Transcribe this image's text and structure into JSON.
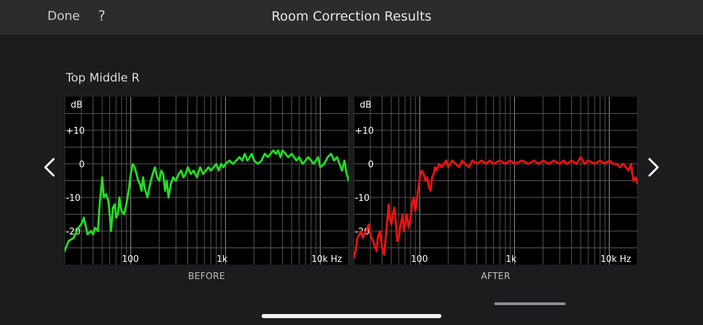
{
  "header": {
    "done_label": "Done",
    "help_label": "?",
    "title": "Room Correction Results"
  },
  "section": {
    "title": "Top Middle R"
  },
  "navigation": {
    "prev_icon": "chevron-left-icon",
    "next_icon": "chevron-right-icon"
  },
  "colors": {
    "before": "#22dd22",
    "after": "#ee1111",
    "background": "#1c1c1e",
    "chart_background": "#000000"
  },
  "chart_data": [
    {
      "type": "line",
      "caption": "BEFORE",
      "ylabel": "dB",
      "xscale": "log",
      "xlim": [
        20,
        20000
      ],
      "ylim": [
        -30,
        20
      ],
      "y_ticks": [
        {
          "value": 10,
          "label": "+10"
        },
        {
          "value": 0,
          "label": "0"
        },
        {
          "value": -10,
          "label": "-10"
        },
        {
          "value": -20,
          "label": "-20"
        }
      ],
      "x_ticks": [
        {
          "value": 100,
          "label": "100"
        },
        {
          "value": 1000,
          "label": "1k"
        },
        {
          "value": 10000,
          "label": "10k Hz"
        }
      ],
      "grid": true,
      "series": [
        {
          "color": "#22dd22",
          "x": [
            20,
            22,
            25,
            28,
            30,
            32,
            35,
            38,
            40,
            42,
            45,
            47,
            50,
            52,
            55,
            58,
            60,
            62,
            65,
            68,
            70,
            73,
            76,
            78,
            80,
            85,
            90,
            95,
            100,
            105,
            110,
            115,
            120,
            125,
            130,
            135,
            140,
            150,
            160,
            170,
            180,
            190,
            200,
            210,
            220,
            230,
            240,
            250,
            265,
            280,
            300,
            320,
            340,
            360,
            380,
            400,
            430,
            460,
            500,
            540,
            580,
            620,
            660,
            700,
            750,
            800,
            850,
            900,
            950,
            1000,
            1100,
            1200,
            1300,
            1400,
            1500,
            1600,
            1700,
            1800,
            1900,
            2000,
            2200,
            2400,
            2600,
            2800,
            3000,
            3200,
            3400,
            3600,
            3800,
            4000,
            4300,
            4600,
            5000,
            5300,
            5600,
            6000,
            6500,
            7000,
            7500,
            8000,
            8500,
            9000,
            9500,
            10000,
            11000,
            12000,
            13000,
            14000,
            15000,
            16000,
            17000,
            18000,
            19000,
            20000
          ],
          "y": [
            -26,
            -23,
            -22,
            -19,
            -18,
            -16,
            -21,
            -20,
            -21,
            -19,
            -20,
            -12,
            -4,
            -10,
            -9,
            -11,
            -15,
            -20,
            -13,
            -12,
            -16,
            -15,
            -10,
            -13,
            -14,
            -15,
            -12,
            -8,
            -3,
            0,
            -1,
            -3,
            -5,
            -6,
            -8,
            -4,
            -7,
            -10,
            -6,
            -3,
            -1,
            -4,
            -5,
            -2,
            -3,
            -8,
            -5,
            -10,
            -6,
            -4,
            -5,
            -3,
            -2,
            -4,
            -3,
            -1,
            -3,
            -2,
            -4,
            -1,
            -3,
            -2,
            -1,
            -2,
            -1,
            0,
            -2,
            0,
            -1,
            0,
            1,
            0,
            1,
            2,
            1,
            3,
            1,
            2,
            3,
            1,
            0,
            1,
            3,
            2,
            3,
            4,
            3,
            4,
            2,
            4,
            3,
            2,
            3,
            2,
            1,
            2,
            0,
            1,
            2,
            1,
            0,
            1,
            2,
            -1,
            0,
            2,
            3,
            1,
            2,
            0,
            -2,
            1,
            -3,
            -5
          ]
        }
      ]
    },
    {
      "type": "line",
      "caption": "AFTER",
      "ylabel": "dB",
      "xscale": "log",
      "xlim": [
        20,
        20000
      ],
      "ylim": [
        -30,
        20
      ],
      "y_ticks": [
        {
          "value": 10,
          "label": "+10"
        },
        {
          "value": 0,
          "label": "0"
        },
        {
          "value": -10,
          "label": "-10"
        },
        {
          "value": -20,
          "label": "-20"
        }
      ],
      "x_ticks": [
        {
          "value": 100,
          "label": "100"
        },
        {
          "value": 1000,
          "label": "1k"
        },
        {
          "value": 10000,
          "label": "10k Hz"
        }
      ],
      "grid": true,
      "series": [
        {
          "color": "#ee1111",
          "x": [
            20,
            21,
            22,
            23,
            24,
            25,
            27,
            28,
            29,
            30,
            32,
            33,
            35,
            36,
            38,
            40,
            42,
            43,
            45,
            47,
            48,
            50,
            52,
            54,
            56,
            58,
            60,
            62,
            64,
            66,
            68,
            70,
            73,
            76,
            80,
            83,
            86,
            90,
            95,
            100,
            105,
            110,
            115,
            120,
            125,
            130,
            135,
            140,
            145,
            150,
            160,
            170,
            180,
            190,
            200,
            220,
            240,
            260,
            280,
            300,
            330,
            360,
            400,
            450,
            500,
            550,
            600,
            700,
            800,
            900,
            1000,
            1200,
            1400,
            1600,
            1800,
            2000,
            2300,
            2600,
            3000,
            3300,
            3600,
            4000,
            4500,
            5000,
            5500,
            6000,
            7000,
            8000,
            9000,
            10000,
            11000,
            12000,
            13000,
            14000,
            15000,
            16000,
            17000,
            17500,
            18000,
            19000,
            20000
          ],
          "y": [
            -28,
            -26,
            -22,
            -21,
            -20,
            -22,
            -20,
            -19,
            -18,
            -21,
            -23,
            -24,
            -26,
            -22,
            -20,
            -25,
            -27,
            -24,
            -18,
            -12,
            -16,
            -18,
            -15,
            -13,
            -18,
            -23,
            -22,
            -19,
            -17,
            -15,
            -20,
            -18,
            -15,
            -19,
            -16,
            -12,
            -10,
            -14,
            -9,
            -4,
            -2,
            -3,
            -5,
            -4,
            -7,
            -8,
            -4,
            -3,
            -1,
            -2,
            0,
            -1,
            0,
            1,
            -1,
            1,
            0,
            -1,
            1,
            0,
            -1,
            1,
            0,
            1,
            0,
            1,
            0,
            1,
            0,
            1,
            0,
            1,
            0,
            1,
            0,
            1,
            0,
            1,
            0,
            1,
            0,
            1,
            0,
            2,
            0,
            1,
            0,
            1,
            0,
            1,
            0,
            0,
            -1,
            0,
            -1,
            -2,
            0,
            -3,
            -5,
            -4,
            -6
          ]
        }
      ]
    }
  ]
}
